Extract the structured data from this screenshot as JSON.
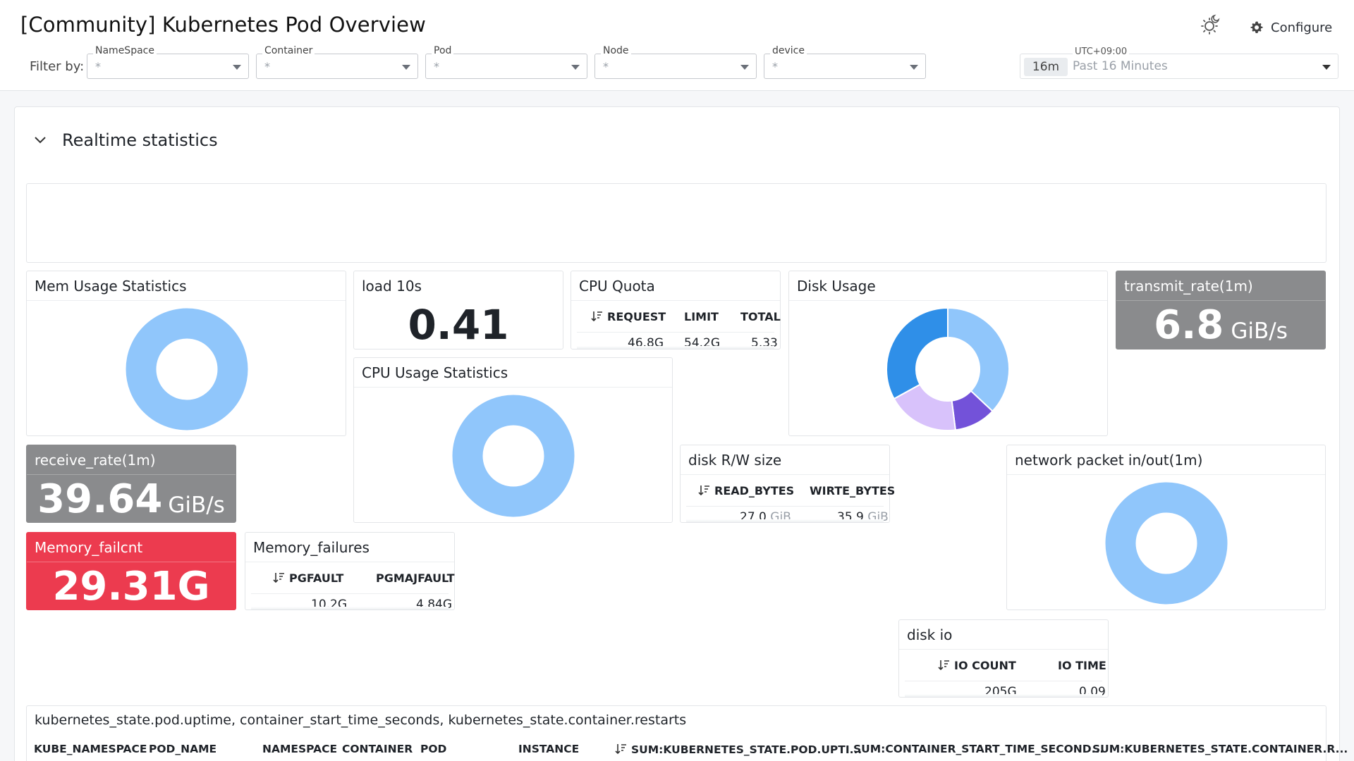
{
  "header": {
    "title": "[Community] Kubernetes Pod Overview",
    "configure_label": "Configure",
    "filter_label": "Filter by:",
    "filters": [
      {
        "label": "NameSpace",
        "value": "*"
      },
      {
        "label": "Container",
        "value": "*"
      },
      {
        "label": "Pod",
        "value": "*"
      },
      {
        "label": "Node",
        "value": "*"
      },
      {
        "label": "device",
        "value": "*"
      }
    ],
    "time": {
      "timezone": "UTC+09:00",
      "badge": "16m",
      "range": "Past 16 Minutes"
    }
  },
  "section": {
    "title": "Realtime statistics"
  },
  "widgets": {
    "mem_usage": {
      "title": "Mem Usage Statistics",
      "color": "#90c6fb"
    },
    "load": {
      "title": "load 10s",
      "value": "0.41"
    },
    "cpu_quota": {
      "title": "CPU Quota",
      "columns": [
        "REQUEST",
        "LIMIT",
        "TOTAL"
      ],
      "values": [
        "46.8G",
        "54.2G",
        "5.33"
      ]
    },
    "disk_usage": {
      "title": "Disk Usage",
      "slices": [
        {
          "fraction": 0.37,
          "color": "#90c6fb"
        },
        {
          "fraction": 0.11,
          "color": "#7352d9"
        },
        {
          "fraction": 0.19,
          "color": "#d8c2fb"
        },
        {
          "fraction": 0.33,
          "color": "#2f8fe8"
        }
      ]
    },
    "transmit_rate": {
      "title": "transmit_rate(1m)",
      "value": "6.8",
      "unit": "GiB/s"
    },
    "cpu_usage": {
      "title": "CPU Usage Statistics",
      "color": "#90c6fb"
    },
    "receive_rate": {
      "title": "receive_rate(1m)",
      "value": "39.64",
      "unit": "GiB/s"
    },
    "disk_rw": {
      "title": "disk R/W size",
      "columns": [
        "READ_BYTES",
        "WIRTE_BYTES"
      ],
      "values": [
        {
          "num": "27.0",
          "unit": "GiB"
        },
        {
          "num": "35.9",
          "unit": "GiB"
        }
      ]
    },
    "network_packet": {
      "title": "network packet in/out(1m)",
      "color": "#90c6fb"
    },
    "memory_failcnt": {
      "title": "Memory_failcnt",
      "value": "29.31G"
    },
    "memory_failures": {
      "title": "Memory_failures",
      "columns": [
        "PGFAULT",
        "PGMAJFAULT"
      ],
      "values": [
        "10.2G",
        "4.84G"
      ]
    },
    "disk_io": {
      "title": "disk io",
      "columns": [
        "IO COUNT",
        "IO TIME"
      ],
      "values": [
        "205G",
        "0.09"
      ]
    }
  },
  "table": {
    "title": "kubernetes_state.pod.uptime, container_start_time_seconds, kubernetes_state.container.restarts",
    "columns": [
      "KUBE_NAMESPACE",
      "POD_NAME",
      "NAMESPACE",
      "CONTAINER",
      "POD",
      "INSTANCE",
      "SUM:KUBERNETES_STATE.POD.UPTI...",
      "SUM:CONTAINER_START_TIME_SECOND...",
      "SUM:KUBERNETES_STATE.CONTAINER.R..."
    ]
  },
  "colors": {
    "accent_blue": "#90c6fb",
    "alert_red": "#ec3b4f",
    "stat_gray": "#8a8b8d"
  }
}
